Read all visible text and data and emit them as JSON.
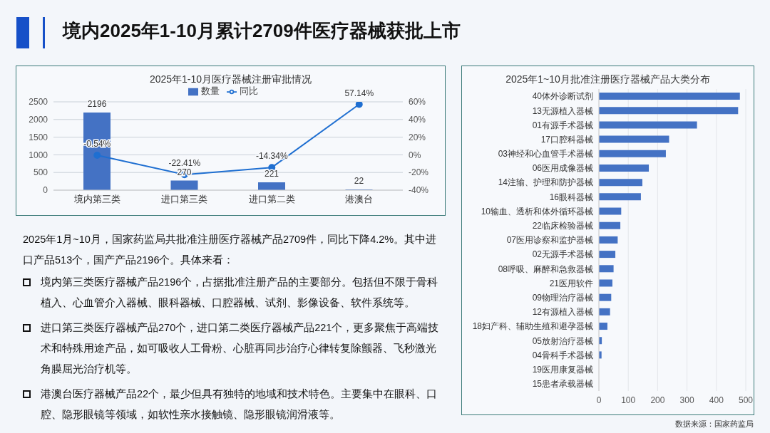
{
  "chart_data": [
    {
      "type": "bar",
      "title": "2025年1-10月医疗器械注册审批情况",
      "categories": [
        "境内第三类",
        "进口第三类",
        "进口第二类",
        "港澳台"
      ],
      "series": [
        {
          "name": "数量",
          "type": "bar",
          "color": "#4472c4",
          "values": [
            2196,
            270,
            221,
            22
          ],
          "value_labels": [
            "2196",
            "270",
            "221",
            "22"
          ]
        },
        {
          "name": "同比",
          "type": "line",
          "color": "#1f6fd1",
          "axis": "y2",
          "values": [
            -0.54,
            -22.41,
            -14.34,
            57.14
          ],
          "value_labels": [
            "-0.54%",
            "-22.41%",
            "-14.34%",
            "57.14%"
          ]
        }
      ],
      "ylim": [
        0,
        2500
      ],
      "yticks": [
        0,
        500,
        1000,
        1500,
        2000,
        2500
      ],
      "y2lim": [
        -40,
        60
      ],
      "y2ticks": [
        {
          "value": -40,
          "label": "-40%"
        },
        {
          "value": -20,
          "label": "-20%"
        },
        {
          "value": 0,
          "label": "0%"
        },
        {
          "value": 20,
          "label": "20%"
        },
        {
          "value": 40,
          "label": "40%"
        },
        {
          "value": 60,
          "label": "60%"
        }
      ],
      "grid": "y",
      "legend": "top",
      "marker": "circle"
    },
    {
      "type": "bar",
      "orientation": "horizontal",
      "title": "2025年1~10月批准注册医疗器械产品大类分布",
      "categories": [
        "40体外诊断试剂",
        "13无源植入器械",
        "01有源手术器械",
        "17口腔科器械",
        "03神经和心血管手术器械",
        "06医用成像器械",
        "14注输、护理和防护器械",
        "16眼科器械",
        "10输血、透析和体外循环器械",
        "22临床检验器械",
        "07医用诊察和监护器械",
        "02无源手术器械",
        "08呼吸、麻醉和急救器械",
        "21医用软件",
        "09物理治疗器械",
        "12有源植入器械",
        "18妇产科、辅助生殖和避孕器械",
        "05放射治疗器械",
        "04骨科手术器械",
        "19医用康复器械",
        "15患者承载器械"
      ],
      "values": [
        480,
        474,
        334,
        239,
        228,
        170,
        148,
        143,
        76,
        73,
        64,
        56,
        50,
        46,
        42,
        38,
        29,
        10,
        9,
        0,
        0
      ],
      "color": "#4472c4",
      "xlim": [
        0,
        500
      ],
      "xticks": [
        0,
        100,
        200,
        300,
        400,
        500
      ],
      "grid": "x",
      "annotations": [
        "数据来源：国家药监局"
      ]
    },
    {
      "type": "other",
      "title": "境内2025年1-10月累计2709件医疗器械获批上市",
      "annotations": [
        "2025年1月~10月，国家药监局共批准注册医疗器械产品2709件，同比下降4.2%。其中进口产品513个，国产产品2196个。具体来看：",
        "境内第三类医疗器械产品2196个，占据批准注册产品的主要部分。包括但不限于骨科植入、心血管介入器械、眼科器械、口腔器械、试剂、影像设备、软件系统等。",
        "进口第三类医疗器械产品270个，进口第二类医疗器械产品221个，更多聚焦于高端技术和特殊用途产品，如可吸收人工骨粉、心脏再同步治疗心律转复除颤器、飞秒激光角膜屈光治疗机等。",
        "港澳台医疗器械产品22个，最少但具有独特的地域和技术特色。主要集中在眼科、口腔、隐形眼镜等领域，如软性亲水接触镜、隐形眼镜润滑液等。"
      ]
    }
  ]
}
